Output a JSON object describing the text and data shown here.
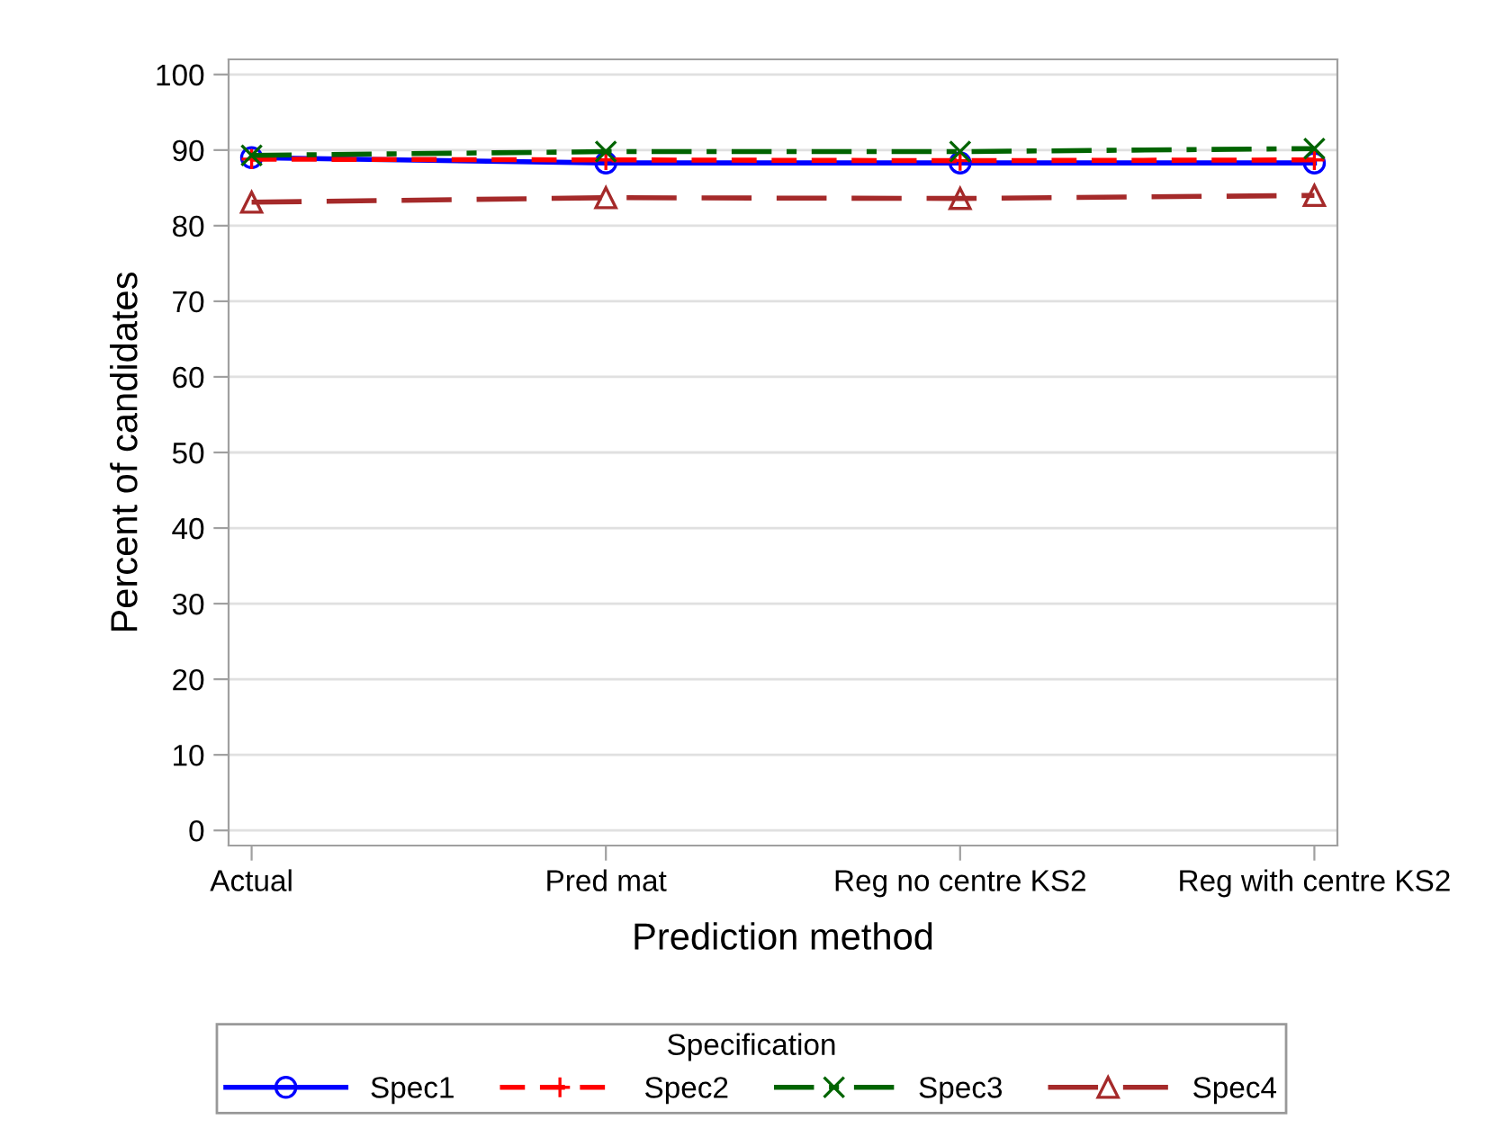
{
  "chart_data": {
    "type": "line",
    "xlabel": "Prediction method",
    "ylabel": "Percent of candidates",
    "legend_title": "Specification",
    "categories": [
      "Actual",
      "Pred mat",
      "Reg no centre KS2",
      "Reg with centre KS2"
    ],
    "series": [
      {
        "name": "Spec1",
        "color": "#0000ff",
        "marker": "circle",
        "line_style": "solid",
        "values": [
          89.0,
          88.3,
          88.3,
          88.3
        ]
      },
      {
        "name": "Spec2",
        "color": "#ff0000",
        "marker": "plus",
        "line_style": "dashed",
        "values": [
          88.8,
          88.7,
          88.6,
          88.7
        ]
      },
      {
        "name": "Spec3",
        "color": "#006400",
        "marker": "cross",
        "line_style": "dashdot",
        "values": [
          89.3,
          89.8,
          89.8,
          90.2
        ]
      },
      {
        "name": "Spec4",
        "color": "#a52a2a",
        "marker": "triangle",
        "line_style": "longdash",
        "values": [
          83.1,
          83.7,
          83.6,
          84.0
        ]
      }
    ],
    "ylim": [
      -2,
      102
    ],
    "yticks": [
      0,
      10,
      20,
      30,
      40,
      50,
      60,
      70,
      80,
      90,
      100
    ],
    "grid": "y",
    "legend": "bottom"
  }
}
